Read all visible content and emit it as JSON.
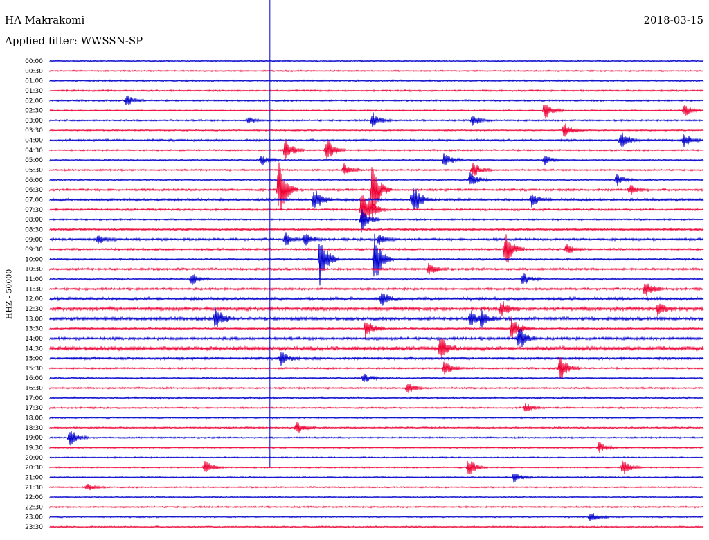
{
  "header": {
    "station": "HA Makrakomi",
    "filter": "Applied filter: WWSSN-SP",
    "date": "2018-03-15"
  },
  "colors": {
    "even": "#0000cc",
    "odd": "#ee0033",
    "marker": "#0000cc"
  },
  "chart_data": {
    "type": "line",
    "title": "HA Makrakomi",
    "subtitle": "Applied filter: WWSSN-SP",
    "date": "2018-03-15",
    "ylabel": "HHZ - 50000",
    "row_labels": [
      "00:00",
      "00:30",
      "01:00",
      "01:30",
      "02:00",
      "02:30",
      "03:00",
      "03:30",
      "04:00",
      "04:30",
      "05:00",
      "05:30",
      "06:00",
      "06:30",
      "07:00",
      "07:30",
      "08:00",
      "08:30",
      "09:00",
      "09:30",
      "10:00",
      "10:30",
      "11:00",
      "11:30",
      "12:00",
      "12:30",
      "13:00",
      "13:30",
      "14:00",
      "14:30",
      "15:00",
      "15:30",
      "16:00",
      "16:30",
      "17:00",
      "17:30",
      "18:00",
      "18:30",
      "19:00",
      "19:30",
      "20:00",
      "20:30",
      "21:00",
      "21:30",
      "22:00",
      "22:30",
      "23:00",
      "23:30"
    ],
    "row_minutes": 30,
    "noise": [
      1,
      0.8,
      1,
      1,
      1,
      0.8,
      1,
      0.8,
      1.2,
      0.9,
      1,
      1,
      1,
      1.3,
      1.6,
      1.2,
      1,
      1.3,
      1.4,
      1.2,
      1.2,
      1.3,
      1.1,
      1.3,
      1.8,
      2.2,
      1.8,
      1.2,
      1.6,
      2.4,
      1.6,
      1,
      1.1,
      1,
      1.2,
      0.9,
      0.9,
      0.9,
      0.9,
      0.9,
      0.8,
      0.8,
      0.9,
      0.8,
      0.9,
      0.9,
      0.8,
      0.9
    ],
    "events": [
      {
        "row": 4,
        "minute": 3.5,
        "amp": 9
      },
      {
        "row": 5,
        "minute": 22.7,
        "amp": 14
      },
      {
        "row": 5,
        "minute": 29.1,
        "amp": 10
      },
      {
        "row": 6,
        "minute": 9.1,
        "amp": 5
      },
      {
        "row": 6,
        "minute": 14.8,
        "amp": 12
      },
      {
        "row": 6,
        "minute": 19.4,
        "amp": 9
      },
      {
        "row": 7,
        "minute": 23.6,
        "amp": 12
      },
      {
        "row": 8,
        "minute": 26.2,
        "amp": 14
      },
      {
        "row": 8,
        "minute": 29.1,
        "amp": 11
      },
      {
        "row": 9,
        "minute": 10.8,
        "amp": 18
      },
      {
        "row": 9,
        "minute": 12.7,
        "amp": 20
      },
      {
        "row": 10,
        "minute": 9.7,
        "amp": 8
      },
      {
        "row": 10,
        "minute": 18.1,
        "amp": 12
      },
      {
        "row": 10,
        "minute": 22.7,
        "amp": 8
      },
      {
        "row": 11,
        "minute": 13.5,
        "amp": 10
      },
      {
        "row": 11,
        "minute": 19.4,
        "amp": 12
      },
      {
        "row": 12,
        "minute": 19.3,
        "amp": 12
      },
      {
        "row": 12,
        "minute": 26,
        "amp": 10
      },
      {
        "row": 13,
        "minute": 10.5,
        "amp": 45
      },
      {
        "row": 13,
        "minute": 14.8,
        "amp": 42
      },
      {
        "row": 13,
        "minute": 26.6,
        "amp": 9
      },
      {
        "row": 14,
        "minute": 12.1,
        "amp": 20
      },
      {
        "row": 14,
        "minute": 16.7,
        "amp": 16
      },
      {
        "row": 14,
        "minute": 16.6,
        "amp": 10
      },
      {
        "row": 14,
        "minute": 22.1,
        "amp": 10
      },
      {
        "row": 15,
        "minute": 14.3,
        "amp": 30
      },
      {
        "row": 15,
        "minute": 14.7,
        "amp": 10
      },
      {
        "row": 16,
        "minute": 14.3,
        "amp": 18
      },
      {
        "row": 18,
        "minute": 2.2,
        "amp": 8
      },
      {
        "row": 18,
        "minute": 10.8,
        "amp": 10
      },
      {
        "row": 18,
        "minute": 11.7,
        "amp": 10
      },
      {
        "row": 18,
        "minute": 15.1,
        "amp": 8
      },
      {
        "row": 19,
        "minute": 20.9,
        "amp": 30
      },
      {
        "row": 19,
        "minute": 23.7,
        "amp": 8
      },
      {
        "row": 20,
        "minute": 12.4,
        "amp": 40
      },
      {
        "row": 20,
        "minute": 14.9,
        "amp": 40
      },
      {
        "row": 21,
        "minute": 17.4,
        "amp": 10
      },
      {
        "row": 22,
        "minute": 6.5,
        "amp": 10
      },
      {
        "row": 22,
        "minute": 21.7,
        "amp": 10
      },
      {
        "row": 23,
        "minute": 27.3,
        "amp": 16
      },
      {
        "row": 24,
        "minute": 15.2,
        "amp": 12
      },
      {
        "row": 25,
        "minute": 20.7,
        "amp": 12
      },
      {
        "row": 25,
        "minute": 27.9,
        "amp": 12
      },
      {
        "row": 26,
        "minute": 7.6,
        "amp": 18
      },
      {
        "row": 26,
        "minute": 19.3,
        "amp": 14
      },
      {
        "row": 26,
        "minute": 19.8,
        "amp": 12
      },
      {
        "row": 27,
        "minute": 14.5,
        "amp": 16
      },
      {
        "row": 27,
        "minute": 21.2,
        "amp": 18
      },
      {
        "row": 28,
        "minute": 21.5,
        "amp": 20
      },
      {
        "row": 29,
        "minute": 17.9,
        "amp": 20
      },
      {
        "row": 30,
        "minute": 10.6,
        "amp": 12
      },
      {
        "row": 31,
        "minute": 23.4,
        "amp": 22
      },
      {
        "row": 31,
        "minute": 18.1,
        "amp": 12
      },
      {
        "row": 32,
        "minute": 14.4,
        "amp": 8
      },
      {
        "row": 33,
        "minute": 16.4,
        "amp": 10
      },
      {
        "row": 35,
        "minute": 21.8,
        "amp": 8
      },
      {
        "row": 37,
        "minute": 11.3,
        "amp": 10
      },
      {
        "row": 38,
        "minute": 0.9,
        "amp": 14
      },
      {
        "row": 39,
        "minute": 25.2,
        "amp": 8
      },
      {
        "row": 41,
        "minute": 7.1,
        "amp": 12
      },
      {
        "row": 41,
        "minute": 19.2,
        "amp": 14
      },
      {
        "row": 41,
        "minute": 26.3,
        "amp": 12
      },
      {
        "row": 42,
        "minute": 21.3,
        "amp": 8
      },
      {
        "row": 43,
        "minute": 1.7,
        "amp": 6
      },
      {
        "row": 46,
        "minute": 24.8,
        "amp": 8
      }
    ],
    "marker_minute": 10.1
  }
}
